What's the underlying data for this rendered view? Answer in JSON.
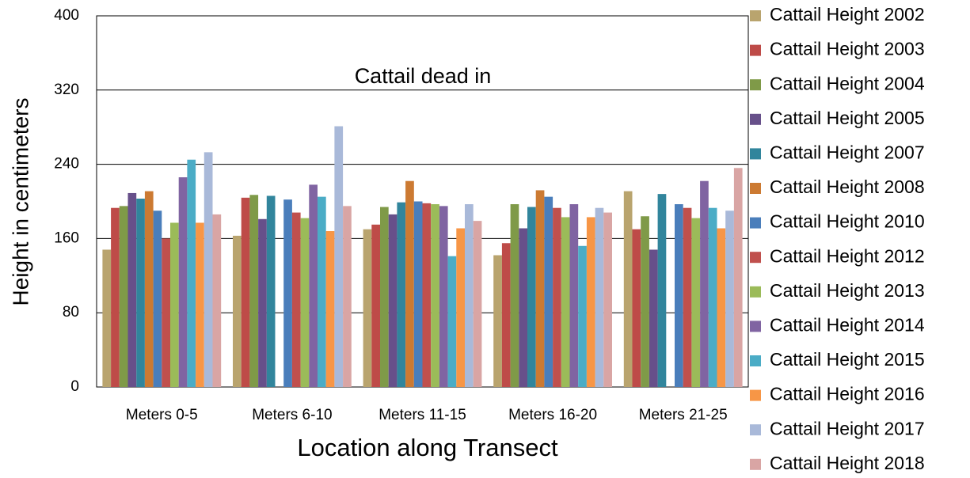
{
  "chart_data": {
    "type": "bar",
    "x_label": "Location along Transect",
    "y_label": "Height in centimeters",
    "annotation": "Cattail dead in",
    "categories": [
      "Meters 0-5",
      "Meters  6-10",
      "Meters 11-15",
      "Meters 16-20",
      "Meters 21-25"
    ],
    "series": [
      {
        "name": "Cattail Height 2002",
        "color": "#b9a46e",
        "values": [
          148,
          163,
          170,
          142,
          211
        ]
      },
      {
        "name": "Cattail Height 2003",
        "color": "#be4b48",
        "values": [
          193,
          204,
          175,
          155,
          170
        ]
      },
      {
        "name": "Cattail Height 2004",
        "color": "#7f9a48",
        "values": [
          195,
          207,
          194,
          197,
          184
        ]
      },
      {
        "name": "Cattail Height 2005",
        "color": "#67508a",
        "values": [
          209,
          181,
          186,
          171,
          148
        ]
      },
      {
        "name": "Cattail Height 2007",
        "color": "#31859c",
        "values": [
          203,
          206,
          199,
          194,
          208
        ]
      },
      {
        "name": "Cattail Height 2008",
        "color": "#cc7a32",
        "values": [
          211,
          null,
          222,
          212,
          null
        ]
      },
      {
        "name": "Cattail Height 2010",
        "color": "#4a7ebb",
        "values": [
          190,
          202,
          200,
          205,
          197
        ]
      },
      {
        "name": "Cattail Height 2012",
        "color": "#c0504d",
        "values": [
          160,
          188,
          198,
          193,
          193
        ]
      },
      {
        "name": "Cattail Height 2013",
        "color": "#9bbb59",
        "values": [
          177,
          182,
          197,
          183,
          182
        ]
      },
      {
        "name": "Cattail Height 2014",
        "color": "#8064a2",
        "values": [
          226,
          218,
          195,
          197,
          222
        ]
      },
      {
        "name": "Cattail Height 2015",
        "color": "#4bacc6",
        "values": [
          245,
          205,
          141,
          152,
          193
        ]
      },
      {
        "name": "Cattail Height 2016",
        "color": "#f79646",
        "values": [
          177,
          168,
          171,
          183,
          171
        ]
      },
      {
        "name": "Cattail Height 2017",
        "color": "#a9b9d9",
        "values": [
          253,
          281,
          197,
          193,
          190
        ]
      },
      {
        "name": "Cattail Height 2018",
        "color": "#d9a5a4",
        "values": [
          186,
          195,
          179,
          188,
          236
        ]
      }
    ],
    "ylim": [
      0,
      400
    ],
    "yticks": [
      0,
      80,
      160,
      240,
      320,
      400
    ],
    "grid": true,
    "legend": "right"
  }
}
